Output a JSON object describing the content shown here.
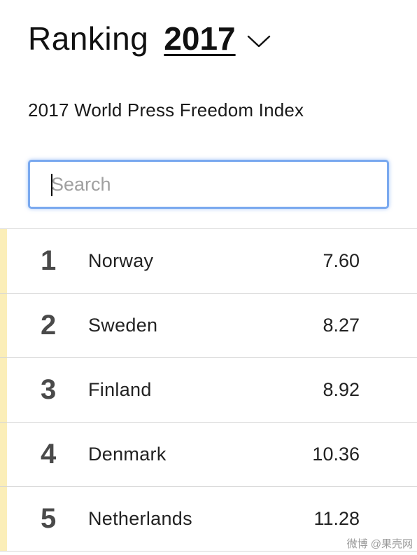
{
  "header": {
    "title": "Ranking",
    "year": "2017"
  },
  "subtitle": "2017 World Press Freedom Index",
  "search": {
    "placeholder": "Search",
    "value": ""
  },
  "colors": {
    "accent_bar": "#fbeeb8",
    "focus_border": "#7aa9ef",
    "divider": "#d6d6d6"
  },
  "rankings": [
    {
      "rank": "1",
      "country": "Norway",
      "score": "7.60"
    },
    {
      "rank": "2",
      "country": "Sweden",
      "score": "8.27"
    },
    {
      "rank": "3",
      "country": "Finland",
      "score": "8.92"
    },
    {
      "rank": "4",
      "country": "Denmark",
      "score": "10.36"
    },
    {
      "rank": "5",
      "country": "Netherlands",
      "score": "11.28"
    }
  ],
  "watermark": "微博 @果壳网"
}
